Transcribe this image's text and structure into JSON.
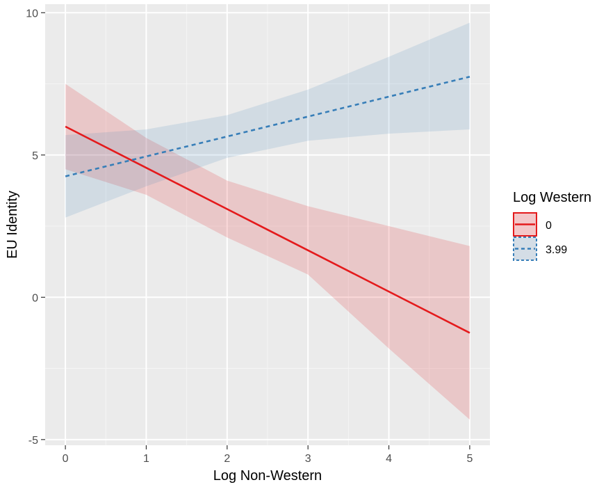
{
  "chart_data": {
    "type": "line",
    "xlabel": "Log Non-Western",
    "ylabel": "EU Identity",
    "xlim": [
      -0.25,
      5.25
    ],
    "ylim": [
      -5.2,
      10.3
    ],
    "x_ticks": [
      0,
      1,
      2,
      3,
      4,
      5
    ],
    "y_ticks": [
      -5,
      0,
      5,
      10
    ],
    "x_tick_labels": [
      "0",
      "1",
      "2",
      "3",
      "4",
      "5"
    ],
    "y_tick_labels": [
      "-5",
      "0",
      "5",
      "10"
    ],
    "grid": true,
    "legend": {
      "title": "Log Western",
      "placement": "right"
    },
    "series": [
      {
        "name": "0",
        "color": "#e41a1c",
        "line_style": "solid",
        "x": [
          0,
          1,
          2,
          3,
          4,
          5
        ],
        "y": [
          6.0,
          4.55,
          3.1,
          1.65,
          0.2,
          -1.25
        ],
        "ci_lower": [
          4.5,
          3.6,
          2.1,
          0.8,
          -1.8,
          -4.3
        ],
        "ci_upper": [
          7.5,
          5.6,
          4.1,
          3.2,
          2.5,
          1.8
        ]
      },
      {
        "name": "3.99",
        "color": "#377eb8",
        "line_style": "dashed",
        "x": [
          0,
          1,
          2,
          3,
          4,
          5
        ],
        "y": [
          4.25,
          4.95,
          5.65,
          6.35,
          7.05,
          7.75
        ],
        "ci_lower": [
          2.8,
          3.9,
          4.9,
          5.5,
          5.75,
          5.9
        ],
        "ci_upper": [
          5.7,
          5.9,
          6.4,
          7.3,
          8.45,
          9.65
        ]
      }
    ]
  }
}
